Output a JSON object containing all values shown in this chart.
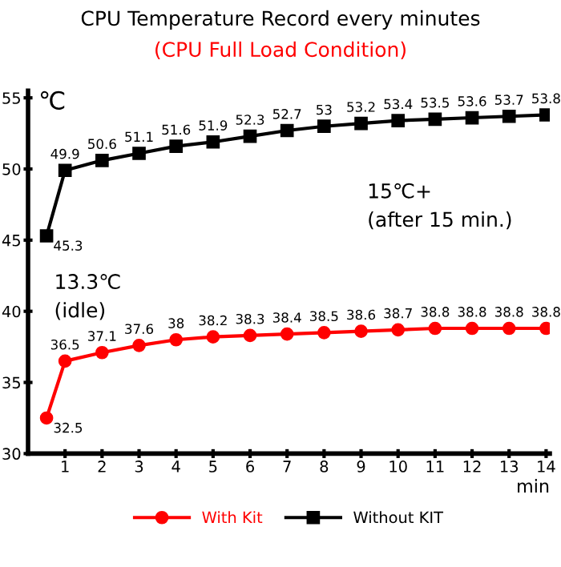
{
  "chart_data": {
    "type": "line",
    "title": "CPU Temperature Record every minutes",
    "subtitle": "(CPU Full Load Condition)",
    "ylabel": "℃",
    "xlabel": "min",
    "x": [
      0.5,
      1,
      2,
      3,
      4,
      5,
      6,
      7,
      8,
      9,
      10,
      11,
      12,
      13,
      14
    ],
    "series": [
      {
        "name": "With Kit",
        "color": "#ff0000",
        "marker": "circle",
        "values": [
          32.5,
          36.5,
          37.1,
          37.6,
          38,
          38.2,
          38.3,
          38.4,
          38.5,
          38.6,
          38.7,
          38.8,
          38.8,
          38.8,
          38.8
        ]
      },
      {
        "name": "Without KIT",
        "color": "#000000",
        "marker": "square",
        "values": [
          45.3,
          49.9,
          50.6,
          51.1,
          51.6,
          51.9,
          52.3,
          52.7,
          53,
          53.2,
          53.4,
          53.5,
          53.6,
          53.7,
          53.8
        ]
      }
    ],
    "annotations": [
      "13.3℃\n(idle)",
      "15℃+\n(after 15 min.)"
    ],
    "xlim": [
      0,
      14.1
    ],
    "ylim": [
      30,
      55.5
    ],
    "xticks": [
      1,
      2,
      3,
      4,
      5,
      6,
      7,
      8,
      9,
      10,
      11,
      12,
      13,
      14
    ],
    "yticks": [
      30,
      35,
      40,
      45,
      50,
      55
    ],
    "data_labels": true,
    "grid": false,
    "legend": "bottom",
    "line_style": "solid"
  }
}
